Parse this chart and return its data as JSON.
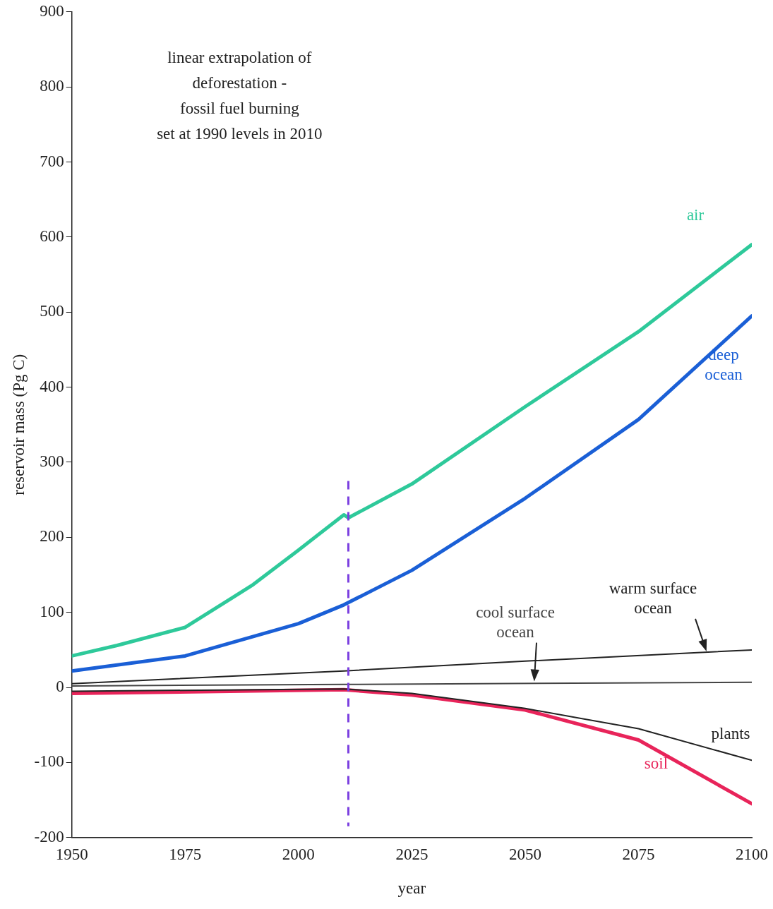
{
  "chart_data": {
    "type": "line",
    "xlabel": "year",
    "ylabel": "reservoir mass (Pg C)",
    "xlim": [
      1950,
      2100
    ],
    "xticks": [
      1950,
      1975,
      2000,
      2025,
      2050,
      2075,
      2100
    ],
    "ylim": [
      -200,
      900
    ],
    "yticks": [
      -200,
      -100,
      0,
      100,
      200,
      300,
      400,
      500,
      600,
      700,
      800,
      900
    ],
    "grid": false,
    "legend": false,
    "marker": "none",
    "line_style": "solid",
    "annotations": [
      "linear extrapolation of\ndeforestation -\nfossil fuel burning\nset at 1990 levels in 2010"
    ],
    "ref_lines": [
      {
        "axis": "x",
        "value": 2011,
        "label": null,
        "color": "#7b3fe0",
        "line_style": "dashed"
      }
    ],
    "series": [
      {
        "name": "air",
        "color": "#2ec99a",
        "x": [
          1950,
          1960,
          1975,
          1985,
          1990,
          2000,
          2010,
          2011,
          2025,
          2050,
          2075,
          2100
        ],
        "values": [
          42,
          56,
          80,
          118,
          137,
          183,
          230,
          226,
          271,
          374,
          474,
          590
        ]
      },
      {
        "name": "deep ocean",
        "color": "#1a5fd6",
        "x": [
          1950,
          1975,
          2000,
          2010,
          2025,
          2050,
          2075,
          2100
        ],
        "values": [
          22,
          42,
          85,
          110,
          156,
          252,
          357,
          495
        ]
      },
      {
        "name": "warm surface ocean",
        "color": "#222222",
        "x": [
          1950,
          2010,
          2050,
          2100
        ],
        "values": [
          5,
          22,
          35,
          50
        ]
      },
      {
        "name": "cool surface ocean",
        "color": "#444444",
        "x": [
          1950,
          2010,
          2100
        ],
        "values": [
          2,
          4,
          7
        ]
      },
      {
        "name": "plants",
        "color": "#222222",
        "x": [
          1950,
          2010,
          2025,
          2050,
          2075,
          2100
        ],
        "values": [
          -5,
          -2,
          -8,
          -28,
          -55,
          -97
        ]
      },
      {
        "name": "soil",
        "color": "#e8245a",
        "x": [
          1950,
          2010,
          2025,
          2050,
          2075,
          2100
        ],
        "values": [
          -8,
          -3,
          -10,
          -30,
          -70,
          -155
        ]
      }
    ]
  }
}
